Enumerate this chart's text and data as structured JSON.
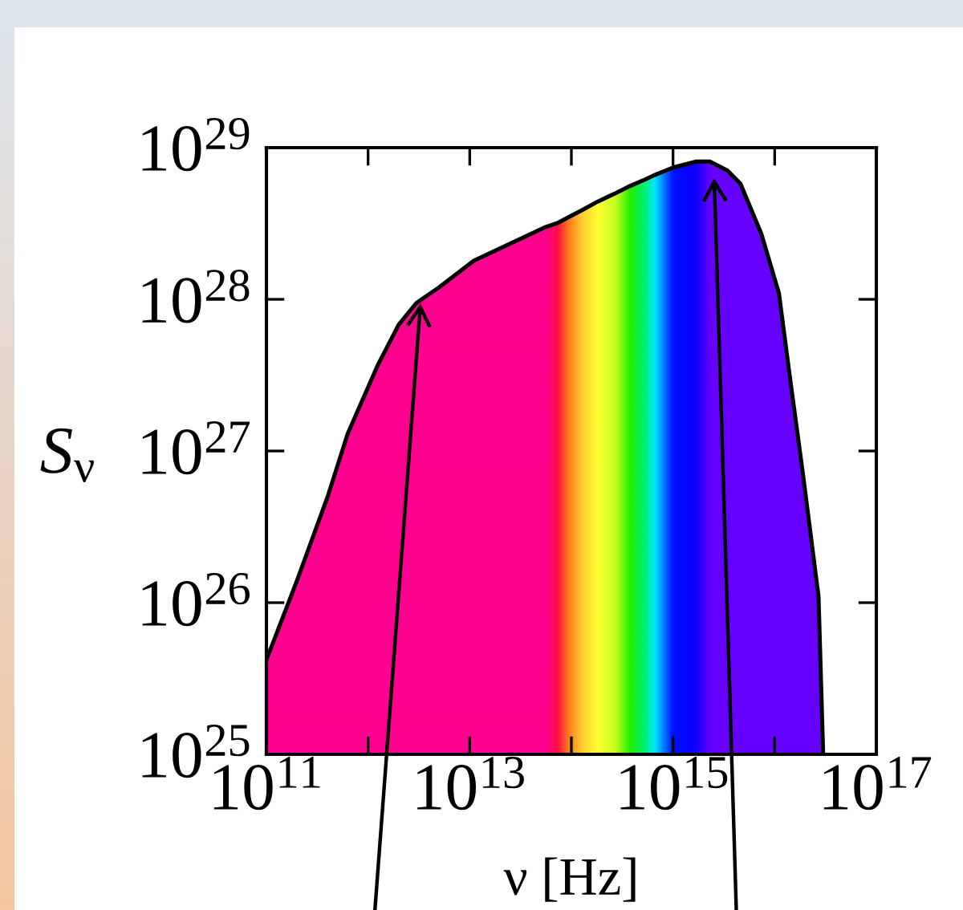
{
  "chart_data": {
    "type": "area",
    "xlabel": "ν [Hz]",
    "ylabel": "S$_{ν}$",
    "log": "xy",
    "xlim": [
      100000000000.0,
      1e+17
    ],
    "ylim": [
      1e+25,
      1e+29
    ],
    "xticks": [
      {
        "value": 100000000000.0,
        "label": "10$^{11}$"
      },
      {
        "value": 1000000000000.0,
        "label": null
      },
      {
        "value": 10000000000000.0,
        "label": "10$^{13}$"
      },
      {
        "value": 100000000000000.0,
        "label": null
      },
      {
        "value": 1000000000000000.0,
        "label": "10$^{15}$"
      },
      {
        "value": 1e+16,
        "label": null
      },
      {
        "value": 1e+17,
        "label": "10$^{17}$"
      }
    ],
    "yticks": [
      {
        "value": 1e+25,
        "label": "10$^{25}$"
      },
      {
        "value": 1e+26,
        "label": "10$^{26}$"
      },
      {
        "value": 1e+27,
        "label": "10$^{27}$"
      },
      {
        "value": 1e+28,
        "label": "10$^{28}$"
      },
      {
        "value": 1e+29,
        "label": "10$^{29}$"
      }
    ],
    "series": [
      {
        "color": "#000000",
        "x": [
          100000000000.0,
          200000000000.0,
          400000000000.0,
          630000000000.0,
          1250000000000.0,
          2000000000000.0,
          3000000000000.0,
          5000000000000.0,
          11000000000000.0,
          56000000000000.0,
          74000000000000.0,
          95000000000000.0,
          130000000000000.0,
          180000000000000.0,
          270000000000000.0,
          380000000000000.0,
          540000000000000.0,
          660000000000000.0,
          1000000000000000.0,
          1700000000000000.0,
          2300000000000000.0,
          3400000000000000.0,
          4600000000000000.0,
          7400000000000000.0,
          1.1e+16,
          1.4e+16,
          1.9e+16,
          2.7e+16,
          3e+16
        ],
        "values": [
          4.2e+25,
          1.4e+26,
          5e+26,
          1.3e+27,
          3.7e+27,
          6.8e+27,
          9.5e+27,
          1.2e+28,
          1.8e+28,
          3e+28,
          3.2e+28,
          3.5e+28,
          3.9e+28,
          4.4e+28,
          5e+28,
          5.6e+28,
          6.2e+28,
          6.6e+28,
          7.4e+28,
          8.1e+28,
          8.1e+28,
          7.1e+28,
          5.8e+28,
          2.7e+28,
          1.1e+28,
          3.2e+27,
          7e+26,
          1.1e+26,
          1e+25
        ],
        "colors": [
          "#ff0090",
          "#ff0090",
          "#ff0090",
          "#ff0090",
          "#ff0090",
          "#ff0090",
          "#ff0090",
          "#ff0090",
          "#ff0090",
          "#ff0090",
          "#ff1040",
          "#ff8020",
          "#ffd030",
          "#ffff30",
          "#c8ff20",
          "#20f000",
          "#00f080",
          "#00e8ff",
          "#0010ff",
          "#1000ff",
          "#6600ff",
          "#6600ff",
          "#6600ff",
          "#6600ff",
          "#6600ff",
          "#6600ff",
          "#6600ff",
          "#6600ff",
          "#6600ff"
        ]
      }
    ]
  }
}
